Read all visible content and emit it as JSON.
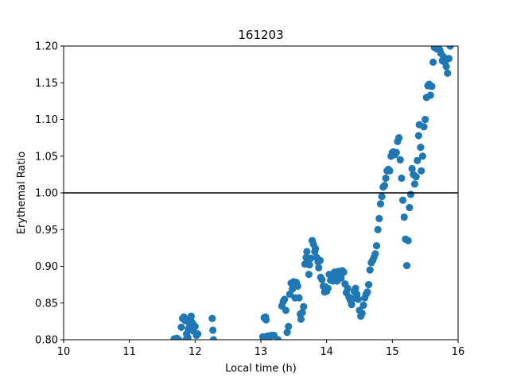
{
  "chart_data": {
    "type": "scatter",
    "title": "161203",
    "xlabel": "Local time (h)",
    "ylabel": "Erythemal Ratio",
    "xlim": [
      10,
      16
    ],
    "ylim": [
      0.8,
      1.2
    ],
    "xticks": [
      10,
      11,
      12,
      13,
      14,
      15,
      16
    ],
    "xtick_labels": [
      "10",
      "11",
      "12",
      "13",
      "14",
      "15",
      "16"
    ],
    "yticks": [
      0.8,
      0.85,
      0.9,
      0.95,
      1.0,
      1.05,
      1.1,
      1.15,
      1.2
    ],
    "ytick_labels": [
      "0.80",
      "0.85",
      "0.90",
      "0.95",
      "1.00",
      "1.05",
      "1.10",
      "1.15",
      "1.20"
    ],
    "grid": false,
    "marker_color": "#1f77b4",
    "reference_line": {
      "y": 1.0,
      "color": "#000000"
    },
    "points": [
      [
        11.68,
        0.801
      ],
      [
        11.72,
        0.802
      ],
      [
        11.75,
        0.8
      ],
      [
        11.79,
        0.817
      ],
      [
        11.81,
        0.829
      ],
      [
        11.83,
        0.831
      ],
      [
        11.85,
        0.826
      ],
      [
        11.86,
        0.8
      ],
      [
        11.87,
        0.808
      ],
      [
        11.89,
        0.803
      ],
      [
        11.9,
        0.815
      ],
      [
        11.92,
        0.82
      ],
      [
        11.93,
        0.829
      ],
      [
        11.94,
        0.832
      ],
      [
        11.95,
        0.824
      ],
      [
        11.97,
        0.812
      ],
      [
        11.98,
        0.82
      ],
      [
        12.0,
        0.818
      ],
      [
        12.02,
        0.806
      ],
      [
        12.04,
        0.808
      ],
      [
        12.26,
        0.829
      ],
      [
        12.27,
        0.813
      ],
      [
        12.28,
        0.8
      ],
      [
        13.03,
        0.804
      ],
      [
        13.05,
        0.83
      ],
      [
        13.07,
        0.831
      ],
      [
        13.08,
        0.827
      ],
      [
        13.09,
        0.801
      ],
      [
        13.1,
        0.805
      ],
      [
        13.12,
        0.8
      ],
      [
        13.16,
        0.806
      ],
      [
        13.2,
        0.806
      ],
      [
        13.26,
        0.8
      ],
      [
        13.32,
        0.846
      ],
      [
        13.34,
        0.852
      ],
      [
        13.36,
        0.855
      ],
      [
        13.38,
        0.84
      ],
      [
        13.4,
        0.81
      ],
      [
        13.42,
        0.818
      ],
      [
        13.44,
        0.862
      ],
      [
        13.46,
        0.877
      ],
      [
        13.48,
        0.869
      ],
      [
        13.5,
        0.879
      ],
      [
        13.52,
        0.857
      ],
      [
        13.54,
        0.878
      ],
      [
        13.56,
        0.873
      ],
      [
        13.58,
        0.857
      ],
      [
        13.6,
        0.835
      ],
      [
        13.61,
        0.828
      ],
      [
        13.63,
        0.837
      ],
      [
        13.65,
        0.845
      ],
      [
        13.67,
        0.903
      ],
      [
        13.69,
        0.912
      ],
      [
        13.7,
        0.92
      ],
      [
        13.71,
        0.908
      ],
      [
        13.73,
        0.889
      ],
      [
        13.74,
        0.902
      ],
      [
        13.76,
        0.911
      ],
      [
        13.78,
        0.935
      ],
      [
        13.8,
        0.93
      ],
      [
        13.82,
        0.92
      ],
      [
        13.83,
        0.924
      ],
      [
        13.85,
        0.912
      ],
      [
        13.87,
        0.906
      ],
      [
        13.88,
        0.898
      ],
      [
        13.9,
        0.908
      ],
      [
        13.91,
        0.885
      ],
      [
        13.93,
        0.882
      ],
      [
        13.95,
        0.873
      ],
      [
        13.97,
        0.865
      ],
      [
        13.98,
        0.872
      ],
      [
        14.0,
        0.866
      ],
      [
        14.02,
        0.87
      ],
      [
        14.04,
        0.889
      ],
      [
        14.06,
        0.881
      ],
      [
        14.08,
        0.886
      ],
      [
        14.1,
        0.88
      ],
      [
        14.12,
        0.892
      ],
      [
        14.14,
        0.885
      ],
      [
        14.16,
        0.88
      ],
      [
        14.18,
        0.893
      ],
      [
        14.2,
        0.888
      ],
      [
        14.22,
        0.884
      ],
      [
        14.24,
        0.894
      ],
      [
        14.26,
        0.892
      ],
      [
        14.28,
        0.876
      ],
      [
        14.3,
        0.864
      ],
      [
        14.32,
        0.87
      ],
      [
        14.34,
        0.858
      ],
      [
        14.36,
        0.854
      ],
      [
        14.38,
        0.848
      ],
      [
        14.4,
        0.856
      ],
      [
        14.42,
        0.866
      ],
      [
        14.44,
        0.87
      ],
      [
        14.46,
        0.862
      ],
      [
        14.48,
        0.855
      ],
      [
        14.5,
        0.84
      ],
      [
        14.52,
        0.832
      ],
      [
        14.54,
        0.836
      ],
      [
        14.56,
        0.847
      ],
      [
        14.58,
        0.857
      ],
      [
        14.6,
        0.862
      ],
      [
        14.62,
        0.865
      ],
      [
        14.64,
        0.875
      ],
      [
        14.66,
        0.895
      ],
      [
        14.68,
        0.905
      ],
      [
        14.7,
        0.908
      ],
      [
        14.72,
        0.912
      ],
      [
        14.74,
        0.917
      ],
      [
        14.76,
        0.928
      ],
      [
        14.78,
        0.95
      ],
      [
        14.8,
        0.965
      ],
      [
        14.82,
        0.985
      ],
      [
        14.84,
        0.995
      ],
      [
        14.86,
        1.008
      ],
      [
        14.88,
        1.01
      ],
      [
        14.9,
        1.02
      ],
      [
        14.92,
        1.03
      ],
      [
        14.94,
        1.032
      ],
      [
        14.96,
        1.03
      ],
      [
        14.98,
        1.05
      ],
      [
        15.0,
        1.055
      ],
      [
        15.02,
        1.056
      ],
      [
        15.04,
        1.052
      ],
      [
        15.06,
        1.055
      ],
      [
        15.08,
        1.07
      ],
      [
        15.1,
        1.075
      ],
      [
        15.12,
        1.045
      ],
      [
        15.14,
        1.02
      ],
      [
        15.16,
        0.99
      ],
      [
        15.18,
        0.967
      ],
      [
        15.2,
        0.937
      ],
      [
        15.22,
        0.901
      ],
      [
        15.24,
        0.935
      ],
      [
        15.26,
        0.98
      ],
      [
        15.28,
        0.998
      ],
      [
        15.3,
        1.033
      ],
      [
        15.32,
        1.025
      ],
      [
        15.34,
        1.012
      ],
      [
        15.36,
        1.022
      ],
      [
        15.38,
        1.044
      ],
      [
        15.4,
        1.078
      ],
      [
        15.41,
        1.093
      ],
      [
        15.43,
        1.062
      ],
      [
        15.44,
        1.03
      ],
      [
        15.46,
        1.05
      ],
      [
        15.48,
        1.09
      ],
      [
        15.5,
        1.1
      ],
      [
        15.52,
        1.13
      ],
      [
        15.54,
        1.146
      ],
      [
        15.56,
        1.148
      ],
      [
        15.58,
        1.133
      ],
      [
        15.6,
        1.145
      ],
      [
        15.62,
        1.178
      ],
      [
        15.64,
        1.198
      ],
      [
        15.66,
        1.2
      ],
      [
        15.68,
        1.196
      ],
      [
        15.7,
        1.2
      ],
      [
        15.72,
        1.195
      ],
      [
        15.74,
        1.19
      ],
      [
        15.76,
        1.18
      ],
      [
        15.78,
        1.185
      ],
      [
        15.8,
        1.178
      ],
      [
        15.82,
        1.172
      ],
      [
        15.84,
        1.163
      ],
      [
        15.86,
        1.183
      ],
      [
        15.88,
        1.2
      ]
    ]
  }
}
